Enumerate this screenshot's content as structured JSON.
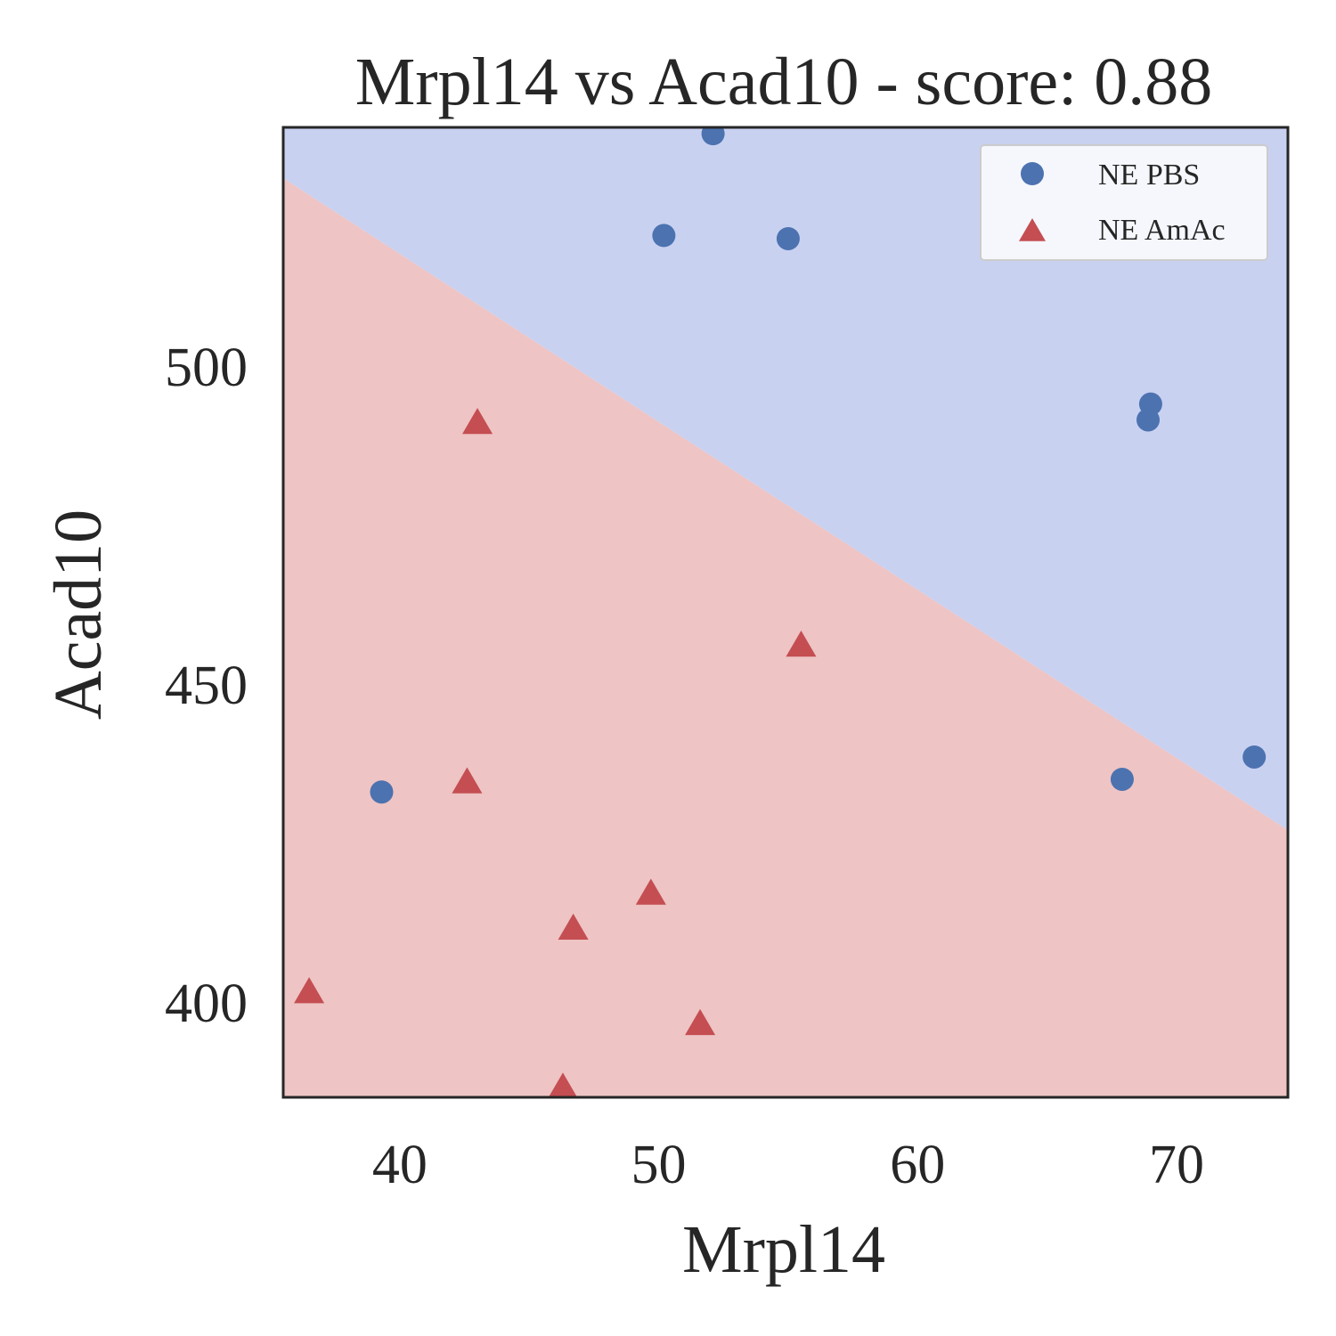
{
  "chart_data": {
    "type": "scatter",
    "title": "Mrpl14 vs Acad10 - score: 0.88",
    "xlabel": "Mrpl14",
    "ylabel": "Acad10",
    "xlim": [
      35.5,
      74.3
    ],
    "ylim": [
      385.0,
      537.5
    ],
    "xticks": [
      40,
      50,
      60,
      70
    ],
    "yticks": [
      400,
      450,
      500
    ],
    "grid": false,
    "legend_position": "top-right",
    "decision_boundary": {
      "points": [
        [
          35.5,
          529.5
        ],
        [
          74.3,
          427.0
        ]
      ],
      "upper_region_color": "#c9d1f1",
      "lower_region_color": "#eec4c4"
    },
    "series": [
      {
        "name": "NE PBS",
        "marker": "circle",
        "color": "#4c72b0",
        "points": [
          [
            52.1,
            536.5
          ],
          [
            50.2,
            520.5
          ],
          [
            55.0,
            520.0
          ],
          [
            69.0,
            494.0
          ],
          [
            68.9,
            491.5
          ],
          [
            73.0,
            438.5
          ],
          [
            67.9,
            435.0
          ],
          [
            39.3,
            433.0
          ]
        ]
      },
      {
        "name": "NE AmAc",
        "marker": "triangle",
        "color": "#c44e52",
        "points": [
          [
            43.0,
            491.0
          ],
          [
            55.5,
            456.0
          ],
          [
            42.6,
            434.5
          ],
          [
            49.7,
            417.0
          ],
          [
            46.7,
            411.5
          ],
          [
            36.5,
            401.5
          ],
          [
            51.6,
            396.5
          ],
          [
            46.3,
            386.5
          ]
        ]
      }
    ]
  }
}
